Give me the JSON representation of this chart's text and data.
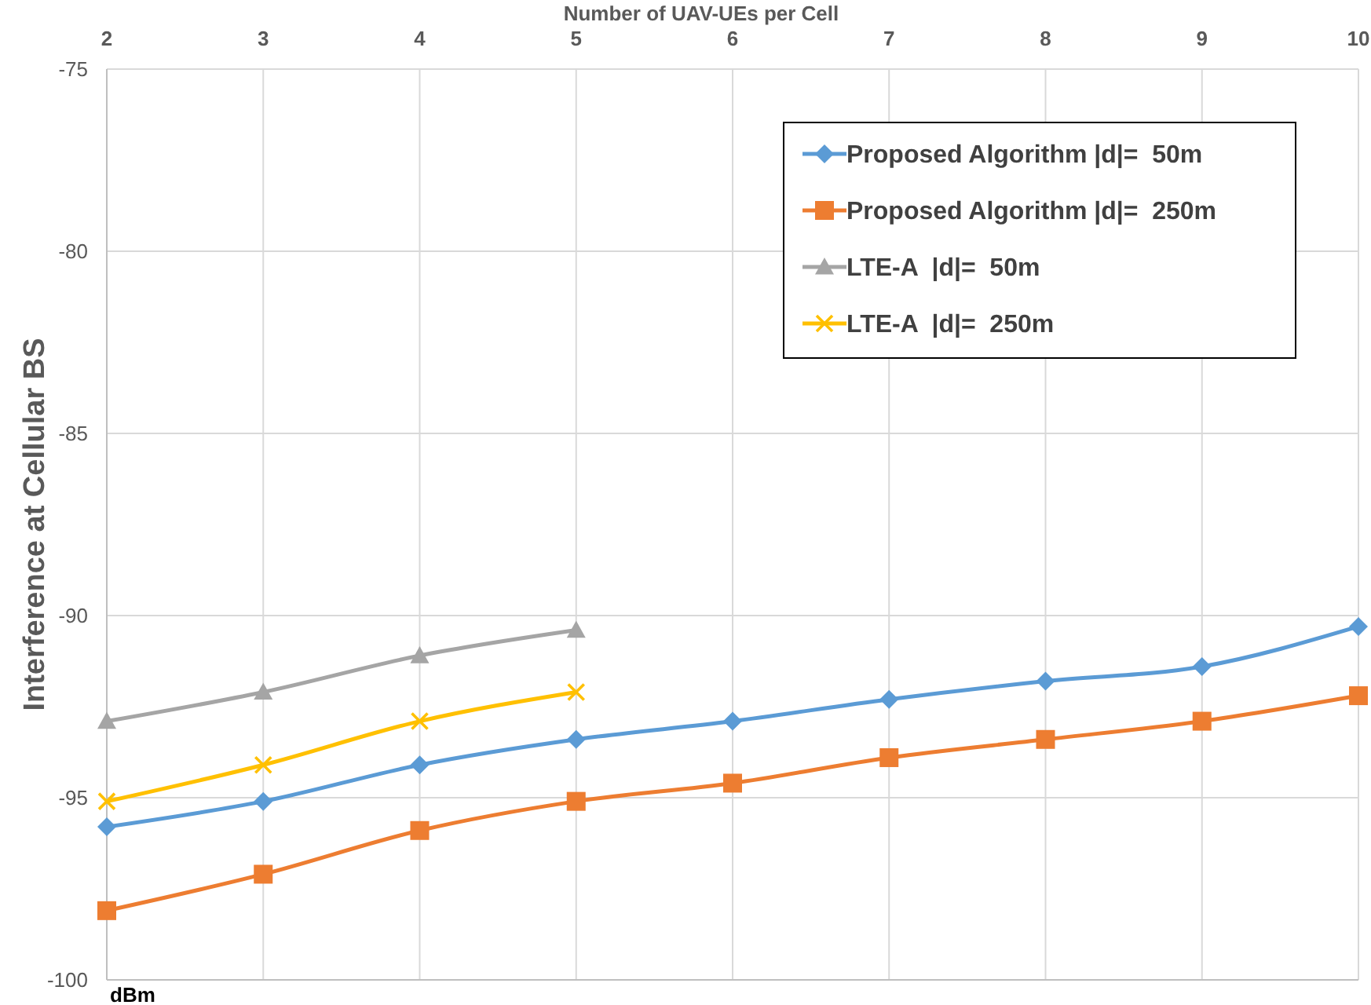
{
  "chart_data": {
    "type": "line",
    "xlabel": "Number of UAV-UEs per Cell",
    "ylabel": "Interference at Cellular BS",
    "annotations": [
      "dBm"
    ],
    "xlim": [
      2,
      10
    ],
    "xticks": [
      2,
      3,
      4,
      5,
      6,
      7,
      8,
      9,
      10
    ],
    "ylim": [
      -100,
      -75
    ],
    "yticks": [
      -100,
      -95,
      -90,
      -85,
      -80,
      -75
    ],
    "grid": true,
    "legend": "top right",
    "series": [
      {
        "name": "Proposed Algorithm |d|=  50m",
        "color": "#5b9bd5",
        "marker": "diamond",
        "x": [
          2,
          3,
          4,
          5,
          6,
          7,
          8,
          9,
          10
        ],
        "values": [
          -95.8,
          -95.1,
          -94.1,
          -93.4,
          -92.9,
          -92.3,
          -91.8,
          -91.4,
          -90.3
        ]
      },
      {
        "name": "Proposed Algorithm |d|=  250m",
        "color": "#ed7d31",
        "marker": "square",
        "x": [
          2,
          3,
          4,
          5,
          6,
          7,
          8,
          9,
          10
        ],
        "values": [
          -98.1,
          -97.1,
          -95.9,
          -95.1,
          -94.6,
          -93.9,
          -93.4,
          -92.9,
          -92.2
        ]
      },
      {
        "name": "LTE-A  |d|=  50m",
        "color": "#a5a5a5",
        "marker": "triangle",
        "x": [
          2,
          3,
          4,
          5
        ],
        "values": [
          -92.9,
          -92.1,
          -91.1,
          -90.4
        ]
      },
      {
        "name": "LTE-A  |d|=  250m",
        "color": "#ffc000",
        "marker": "cross",
        "x": [
          2,
          3,
          4,
          5
        ],
        "values": [
          -95.1,
          -94.1,
          -92.9,
          -92.1
        ]
      }
    ]
  }
}
